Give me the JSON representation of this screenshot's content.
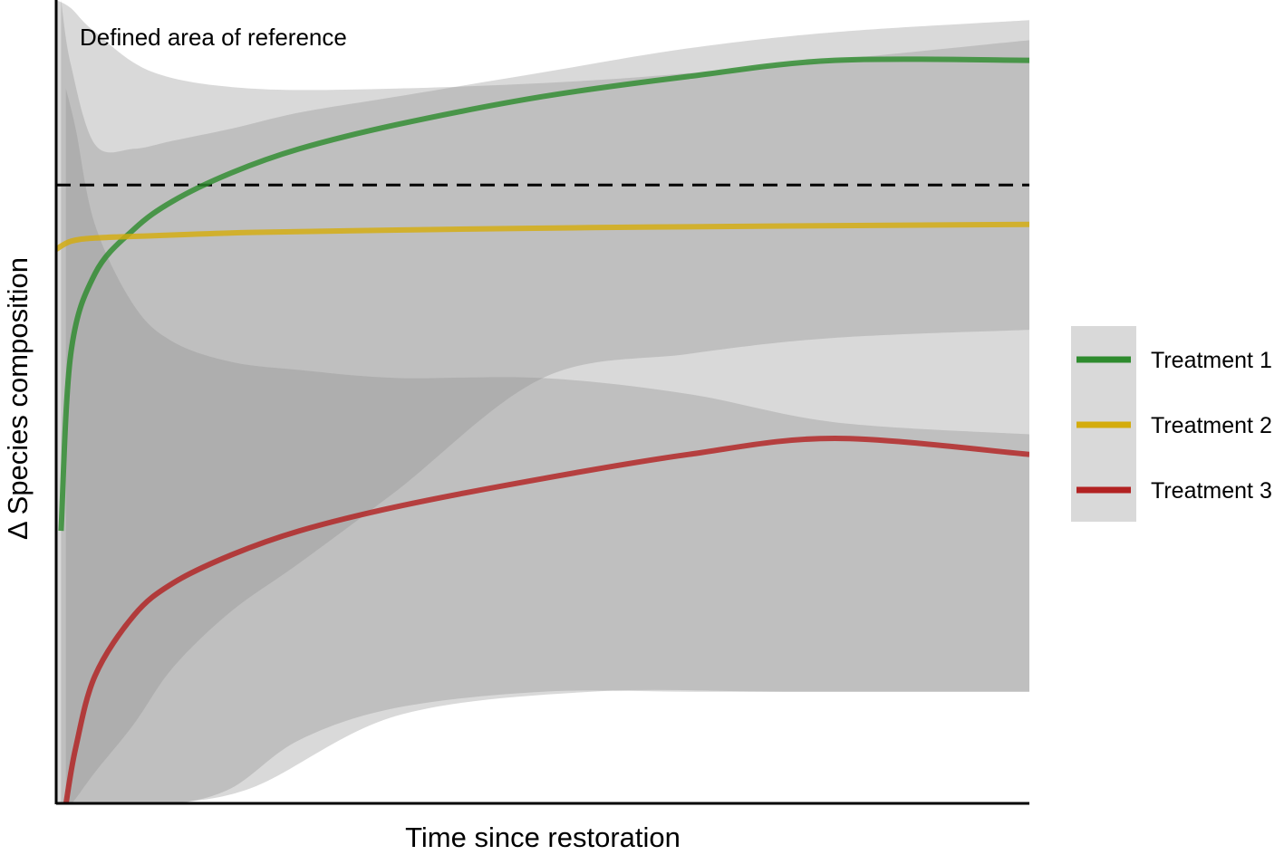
{
  "chart_data": {
    "type": "line",
    "title": "",
    "xlabel": "Time since restoration",
    "ylabel": "Δ Species composition",
    "xlim": [
      0,
      100
    ],
    "ylim": [
      0,
      100
    ],
    "x_ticks_shown": false,
    "y_ticks_shown": false,
    "grid": false,
    "legend_position": "right",
    "annotation": "Defined area of reference",
    "reference_line": {
      "y": 77,
      "style": "dashed",
      "color": "#000000"
    },
    "series": [
      {
        "name": "Treatment 1",
        "color": "#2e8b2e",
        "x": [
          0.5,
          1.5,
          4,
          8,
          12,
          18,
          25,
          35,
          50,
          65,
          80,
          100
        ],
        "y": [
          34,
          56,
          66,
          71.5,
          75,
          78.5,
          81.5,
          84.5,
          88,
          90.5,
          92.5,
          92.5
        ],
        "band_upper": [
          100,
          92,
          82,
          81.5,
          82.5,
          84,
          86,
          88,
          91,
          94,
          96,
          97.5
        ],
        "band_lower": [
          0,
          0,
          4,
          10,
          17,
          24,
          30,
          39,
          53,
          56,
          58,
          59
        ]
      },
      {
        "name": "Treatment 2",
        "color": "#d4ac0d",
        "x": [
          0,
          1.5,
          4,
          10,
          20,
          35,
          55,
          75,
          100
        ],
        "y": [
          69,
          70,
          70.4,
          70.7,
          71.1,
          71.4,
          71.7,
          71.9,
          72.1
        ],
        "band_upper": [
          100,
          99,
          96,
          91,
          89,
          89,
          90,
          92,
          95
        ],
        "band_lower": [
          0,
          0,
          0,
          0,
          2,
          11,
          14,
          14,
          14
        ]
      },
      {
        "name": "Treatment 3",
        "color": "#b22222",
        "x": [
          1,
          2,
          4,
          8,
          12,
          18,
          25,
          35,
          50,
          65,
          80,
          100
        ],
        "y": [
          0,
          7,
          16,
          23.5,
          27.5,
          31,
          34,
          37,
          40.5,
          43.5,
          45.5,
          43.5
        ],
        "band_upper": [
          89,
          84,
          72,
          62,
          57.5,
          55,
          54,
          53,
          53,
          51,
          47.5,
          46
        ],
        "band_lower": [
          0,
          0,
          0,
          0,
          0,
          2,
          8,
          12,
          14,
          14,
          14,
          14
        ]
      }
    ]
  }
}
